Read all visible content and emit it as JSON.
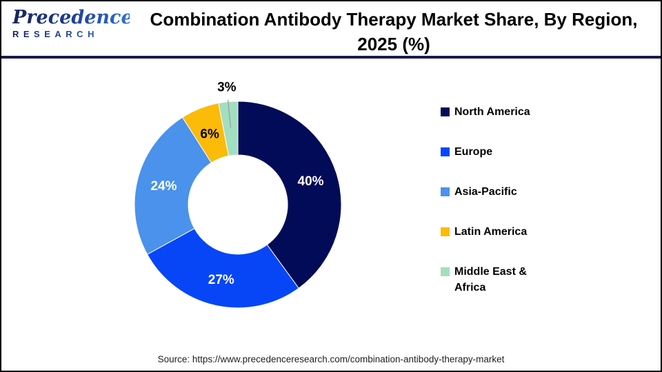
{
  "header": {
    "logo_line1": "Precedence",
    "logo_line2": "RESEARCH",
    "title_line1": "Combination Antibody Therapy Market Share, By Region,",
    "title_line2": "2025 (%)"
  },
  "colors": {
    "divider": "#171a4a",
    "frame_border": "#000000",
    "leader_line": "#9b9b9b",
    "brand_dark": "#16225f",
    "brand_light": "#2f6fd3"
  },
  "chart_data": {
    "type": "pie",
    "donut": true,
    "title": "Combination Antibody Therapy Market Share, By Region, 2025 (%)",
    "start_angle_deg": 0,
    "direction": "clockwise",
    "legend_position": "right",
    "categories": [
      "North America",
      "Europe",
      "Asia-Pacific",
      "Latin America",
      "Middle East & Africa"
    ],
    "values": [
      40,
      27,
      24,
      6,
      3
    ],
    "slices": [
      {
        "label": "North America",
        "value": 40,
        "pct_label": "40%",
        "color": "#020b57",
        "label_color": "#ffffff",
        "label_placement": "inside"
      },
      {
        "label": "Europe",
        "value": 27,
        "pct_label": "27%",
        "color": "#0646f6",
        "label_color": "#ffffff",
        "label_placement": "inside"
      },
      {
        "label": "Asia-Pacific",
        "value": 24,
        "pct_label": "24%",
        "color": "#4a92ec",
        "label_color": "#ffffff",
        "label_placement": "inside"
      },
      {
        "label": "Latin America",
        "value": 6,
        "pct_label": "6%",
        "color": "#fbbb08",
        "label_color": "#000000",
        "label_placement": "inside"
      },
      {
        "label": "Middle East & Africa",
        "value": 3,
        "pct_label": "3%",
        "color": "#a3dec0",
        "label_color": "#000000",
        "label_placement": "outside"
      }
    ]
  },
  "footer": {
    "source": "Source: https://www.precedenceresearch.com/combination-antibody-therapy-market"
  }
}
